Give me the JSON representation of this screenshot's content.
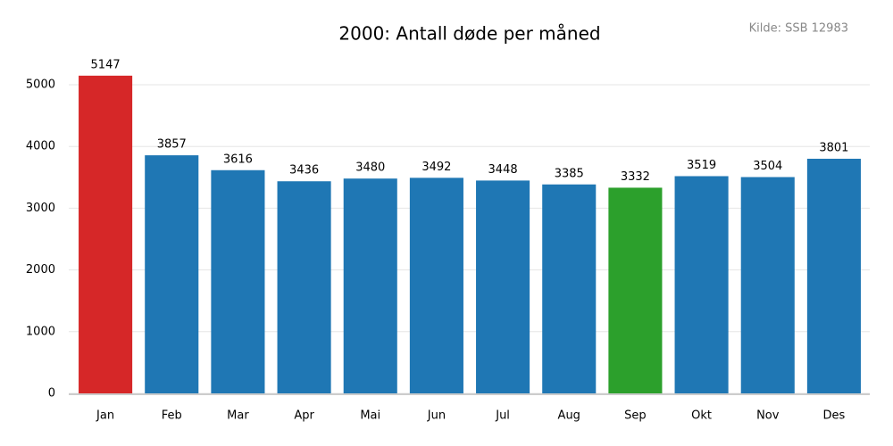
{
  "chart_data": {
    "type": "bar",
    "title": "2000: Antall døde per måned",
    "annotation": "Kilde: SSB 12983",
    "categories": [
      "Jan",
      "Feb",
      "Mar",
      "Apr",
      "Mai",
      "Jun",
      "Jul",
      "Aug",
      "Sep",
      "Okt",
      "Nov",
      "Des"
    ],
    "values": [
      5147,
      3857,
      3616,
      3436,
      3480,
      3492,
      3448,
      3385,
      3332,
      3519,
      3504,
      3801
    ],
    "colors": [
      "#d62728",
      "#1f77b4",
      "#1f77b4",
      "#1f77b4",
      "#1f77b4",
      "#1f77b4",
      "#1f77b4",
      "#1f77b4",
      "#2ca02c",
      "#1f77b4",
      "#1f77b4",
      "#1f77b4"
    ],
    "ylim": [
      0,
      5500
    ],
    "yticks": [
      0,
      1000,
      2000,
      3000,
      4000,
      5000
    ],
    "grid": true
  }
}
